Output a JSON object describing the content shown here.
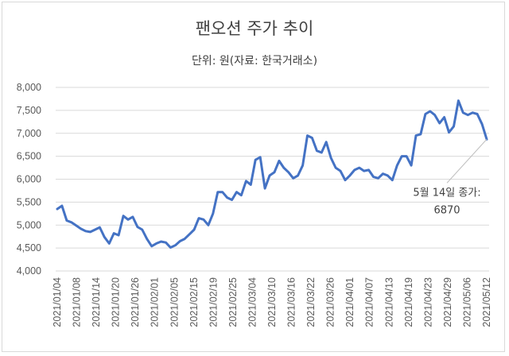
{
  "chart_data": {
    "type": "line",
    "title": "팬오션 주가 추이",
    "subtitle": "단위: 원(자료: 한국거래소)",
    "ylim": [
      4000,
      8000
    ],
    "yticks": [
      "8,000",
      "7,500",
      "7,000",
      "6,500",
      "6,000",
      "5,500",
      "5,000",
      "4,500",
      "4,000"
    ],
    "x_tick_labels": [
      "2021/01/04",
      "2021/01/08",
      "2021/01/14",
      "2021/01/20",
      "2021/01/26",
      "2021/02/01",
      "2021/02/05",
      "2021/02/15",
      "2021/02/19",
      "2021/02/25",
      "2021/03/04",
      "2021/03/10",
      "2021/03/16",
      "2021/03/22",
      "2021/03/26",
      "2021/04/01",
      "2021/04/07",
      "2021/04/13",
      "2021/04/19",
      "2021/04/23",
      "2021/04/29",
      "2021/05/06",
      "2021/05/12"
    ],
    "grid": true,
    "line_color": "#4472c4",
    "values": [
      5350,
      5420,
      5100,
      5060,
      4990,
      4920,
      4870,
      4850,
      4900,
      4950,
      4740,
      4600,
      4820,
      4780,
      5200,
      5120,
      5180,
      4960,
      4900,
      4700,
      4540,
      4600,
      4640,
      4620,
      4510,
      4560,
      4650,
      4700,
      4800,
      4900,
      5150,
      5120,
      5000,
      5250,
      5720,
      5720,
      5600,
      5550,
      5720,
      5650,
      5960,
      5880,
      6420,
      6480,
      5800,
      6080,
      6150,
      6400,
      6250,
      6150,
      6020,
      6080,
      6300,
      6950,
      6900,
      6620,
      6580,
      6810,
      6460,
      6250,
      6180,
      5980,
      6080,
      6200,
      6250,
      6180,
      6200,
      6050,
      6020,
      6120,
      6080,
      5980,
      6300,
      6500,
      6500,
      6300,
      6950,
      6980,
      7420,
      7480,
      7400,
      7220,
      7350,
      7020,
      7150,
      7710,
      7450,
      7400,
      7450,
      7420,
      7200,
      6870
    ],
    "annotation": {
      "text_line1": "5월 14일 종가:",
      "text_line2": "6870"
    }
  }
}
